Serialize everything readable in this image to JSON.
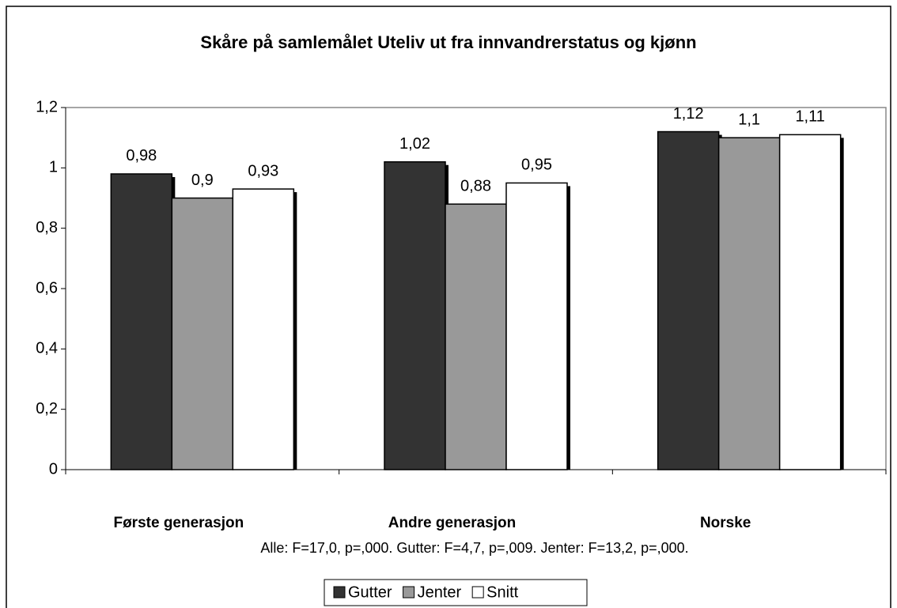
{
  "chart_data": {
    "type": "bar",
    "title": "Skåre på samlemålet Uteliv ut fra innvandrerstatus og kjønn",
    "annotation": "Alle: F=17,0, p=,000. Gutter: F=4,7, p=,009. Jenter: F=13,2, p=,000.",
    "categories": [
      "Første generasjon",
      "Andre generasjon",
      "Norske"
    ],
    "series": [
      {
        "name": "Gutter",
        "color": "#333333",
        "values": [
          0.98,
          1.02,
          1.12
        ],
        "value_labels": [
          "0,98",
          "1,02",
          "1,12"
        ]
      },
      {
        "name": "Jenter",
        "color": "#999999",
        "values": [
          0.9,
          0.88,
          1.1
        ],
        "value_labels": [
          "0,9",
          "0,88",
          "1,1"
        ]
      },
      {
        "name": "Snitt",
        "color": "#ffffff",
        "values": [
          0.93,
          0.95,
          1.11
        ],
        "value_labels": [
          "0,93",
          "0,95",
          "1,11"
        ]
      }
    ],
    "ylim": [
      0,
      1.2
    ],
    "yticks": [
      0,
      {
        "value": 0.2,
        "label": "0,2"
      },
      {
        "value": 0.4,
        "label": "0,4"
      },
      {
        "value": 0.6,
        "label": "0,6"
      },
      {
        "value": 0.8,
        "label": "0,8"
      },
      1,
      {
        "value": 1.2,
        "label": "1,2"
      }
    ],
    "grid": false,
    "legend": "bottom"
  }
}
